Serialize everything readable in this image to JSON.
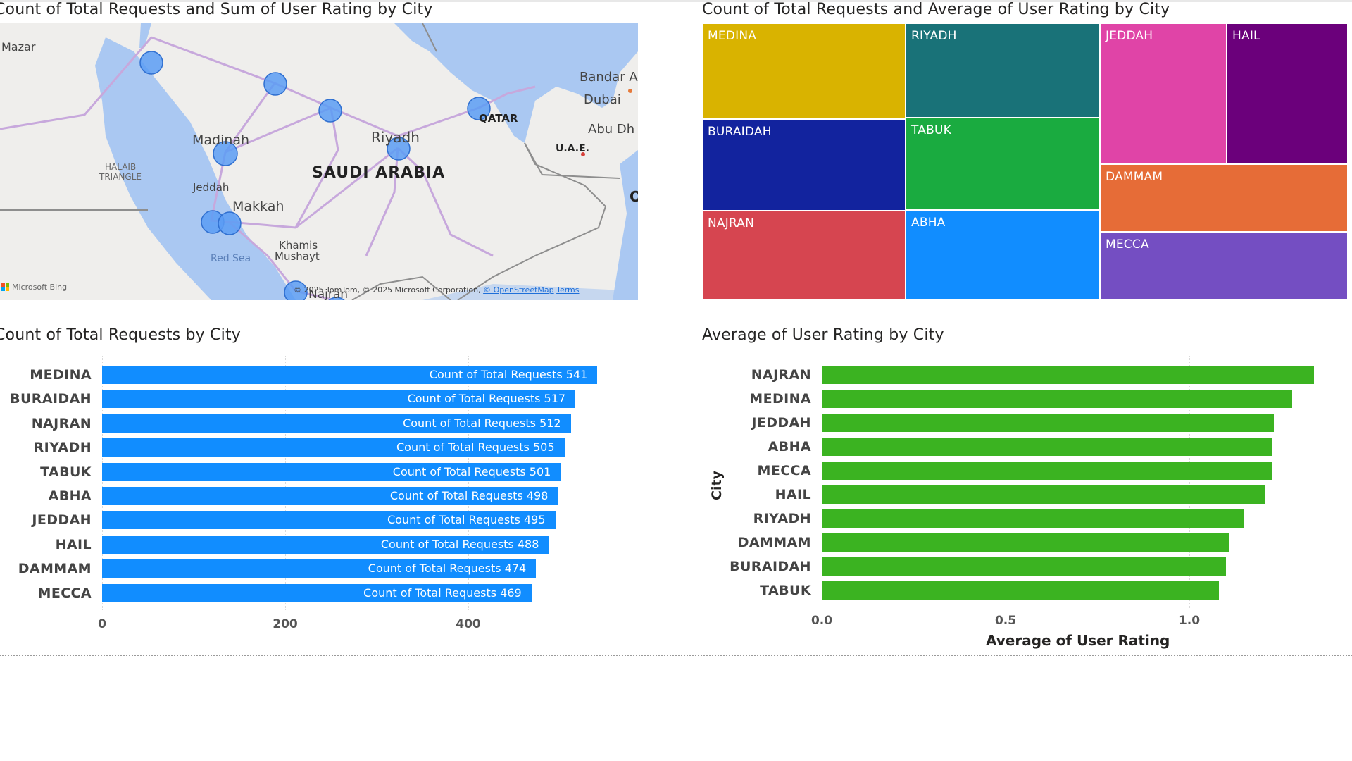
{
  "visuals": {
    "map": {
      "title": "Count of Total Requests and Sum of User Rating by City",
      "labels": {
        "mazar": "Mazar",
        "bandar": "Bandar A",
        "dubai": "Dubai",
        "abu_dhabi": "Abu Dh",
        "qatar": "QATAR",
        "uae": "U.A.E.",
        "madinah": "Madinah",
        "riyadh": "Riyadh",
        "saudi": "SAUDI ARABIA",
        "halaib_1": "HALAIB",
        "halaib_2": "TRIANGLE",
        "jeddah": "Jeddah",
        "makkah": "Makkah",
        "khamis_1": "Khamis",
        "khamis_2": "Mushayt",
        "red_sea": "Red Sea",
        "najran": "Najran",
        "o_edge": "O"
      },
      "bing": "Microsoft Bing",
      "copyright": "© 2025 TomTom, © 2025 Microsoft Corporation,",
      "osm_link": "© OpenStreetMap",
      "terms_link": "Terms"
    },
    "treemap": {
      "title": "Count of Total Requests and Average of User Rating by City",
      "colors": {
        "MEDINA": "#d9b300",
        "BURAIDAH": "#12239e",
        "NAJRAN": "#d64550",
        "RIYADH": "#197278",
        "TABUK": "#1aab40",
        "ABHA": "#118dff",
        "JEDDAH": "#e044a7",
        "HAIL": "#6b007b",
        "DAMMAM": "#e66c37",
        "MECCA": "#744ec2"
      }
    },
    "count_bar": {
      "title": "Count of Total Requests by City",
      "measure_label": "Count of Total Requests",
      "bar_color": "#118dff"
    },
    "rating_bar": {
      "title": "Average of User Rating by City",
      "bar_color": "#3bb321"
    }
  },
  "chart_data": [
    {
      "type": "treemap",
      "title": "Count of Total Requests and Average of User Rating by City",
      "categories": [
        "MEDINA",
        "BURAIDAH",
        "NAJRAN",
        "RIYADH",
        "TABUK",
        "ABHA",
        "JEDDAH",
        "HAIL",
        "DAMMAM",
        "MECCA"
      ],
      "values": [
        541,
        517,
        512,
        505,
        501,
        498,
        495,
        488,
        474,
        469
      ]
    },
    {
      "type": "bar",
      "orientation": "horizontal",
      "title": "Count of Total Requests by City",
      "categories": [
        "MEDINA",
        "BURAIDAH",
        "NAJRAN",
        "RIYADH",
        "TABUK",
        "ABHA",
        "JEDDAH",
        "HAIL",
        "DAMMAM",
        "MECCA"
      ],
      "series": [
        {
          "name": "Count of Total Requests",
          "values": [
            541,
            517,
            512,
            505,
            501,
            498,
            495,
            488,
            474,
            469
          ]
        }
      ],
      "xlim": [
        0,
        590
      ],
      "xticks": [
        "0",
        "200",
        "400"
      ]
    },
    {
      "type": "bar",
      "orientation": "horizontal",
      "title": "Average of User Rating by City",
      "xlabel": "Average of User Rating",
      "ylabel": "City",
      "categories": [
        "NAJRAN",
        "MEDINA",
        "JEDDAH",
        "ABHA",
        "MECCA",
        "HAIL",
        "RIYADH",
        "DAMMAM",
        "BURAIDAH",
        "TABUK"
      ],
      "values": [
        1.34,
        1.28,
        1.23,
        1.225,
        1.225,
        1.205,
        1.15,
        1.11,
        1.1,
        1.08
      ],
      "xlim": [
        0,
        1.45
      ],
      "xticks": [
        "0.0",
        "0.5",
        "1.0"
      ]
    }
  ]
}
